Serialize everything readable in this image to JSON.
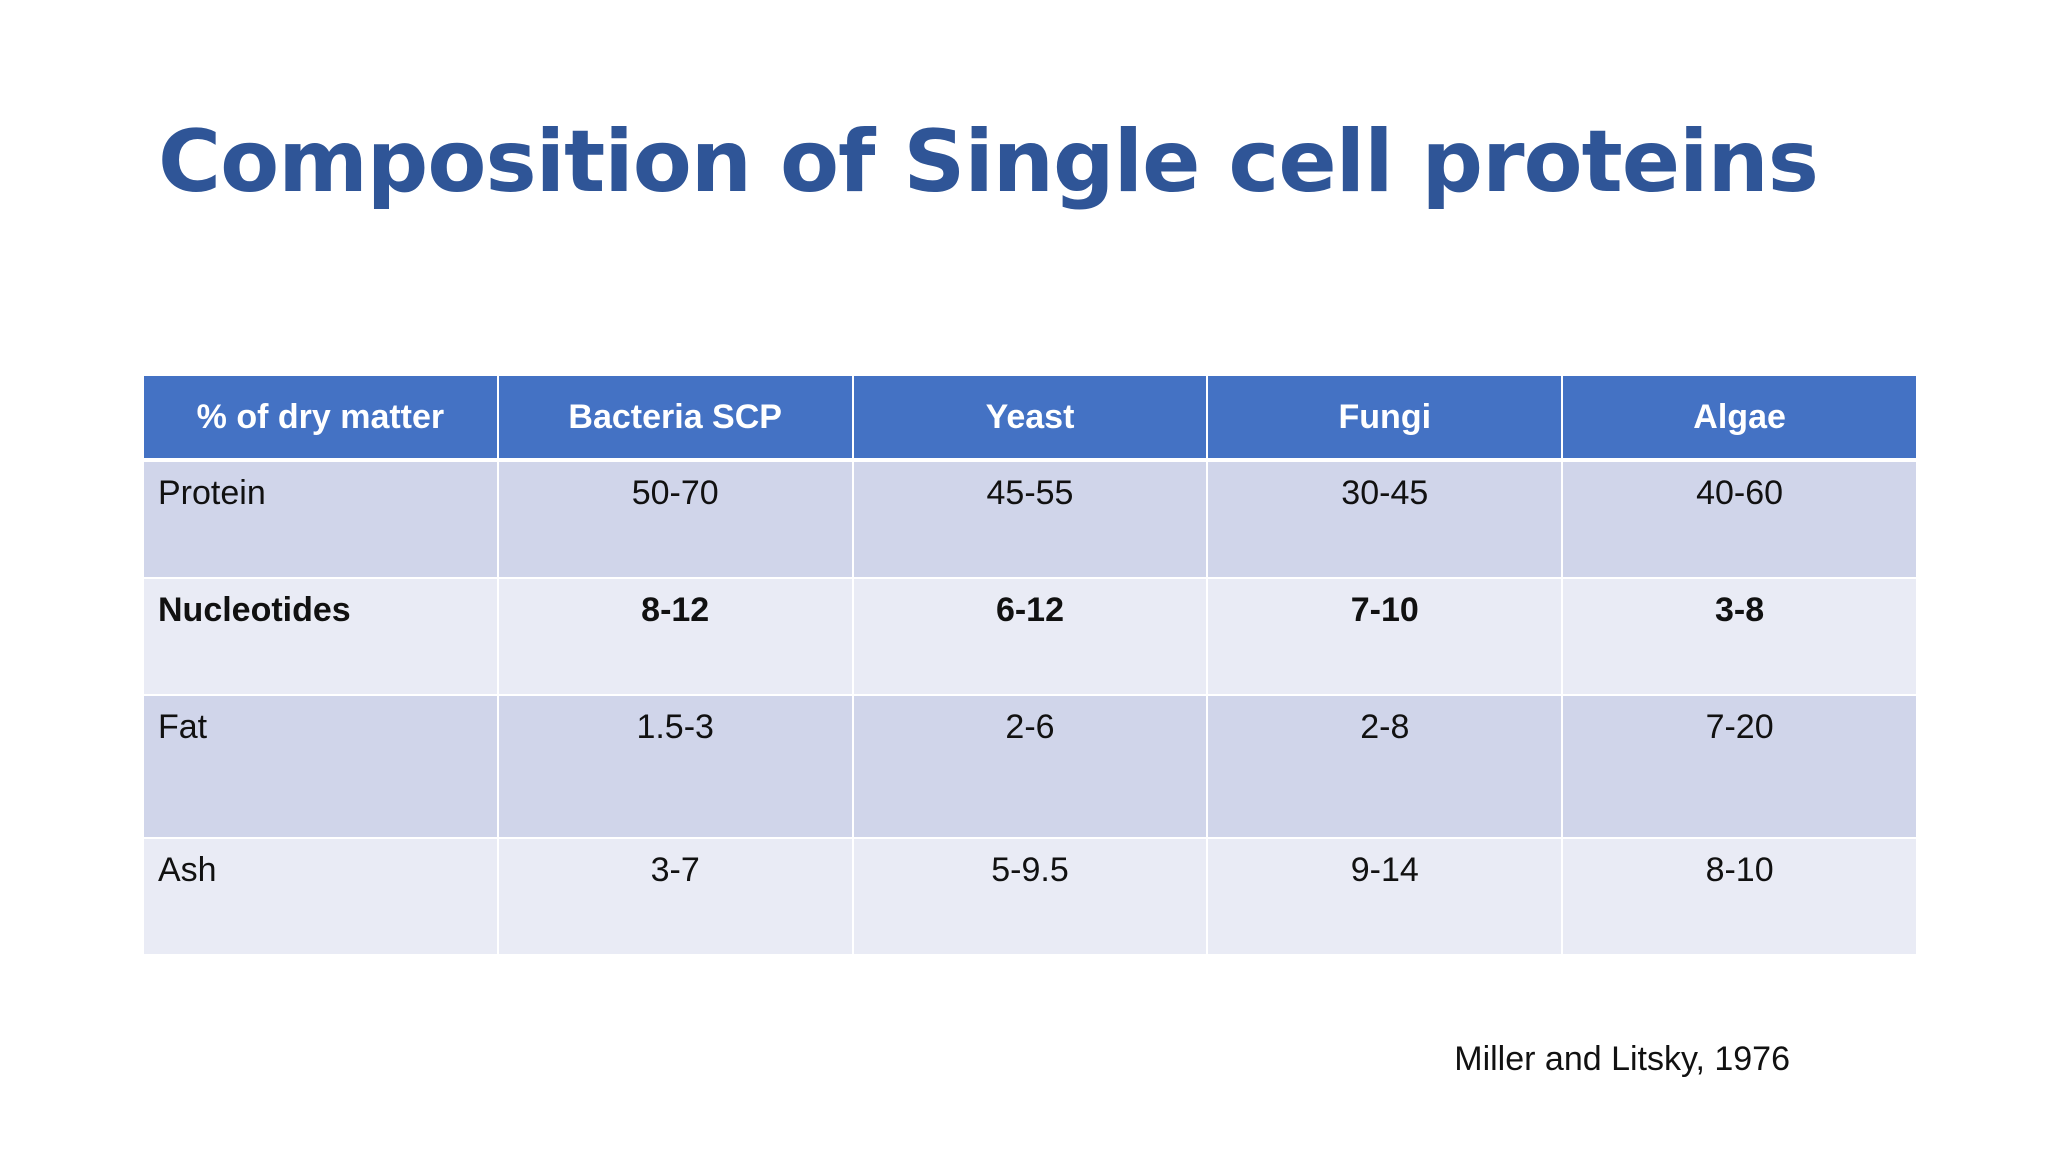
{
  "title": "Composition of Single cell proteins",
  "table": {
    "headers": [
      "% of dry matter",
      "Bacteria SCP",
      "Yeast",
      "Fungi",
      "Algae"
    ],
    "rows": [
      {
        "label": "Protein",
        "values": [
          "50-70",
          "45-55",
          "30-45",
          "40-60"
        ]
      },
      {
        "label": "Nucleotides",
        "values": [
          "8-12",
          "6-12",
          "7-10",
          "3-8"
        ]
      },
      {
        "label": "Fat",
        "values": [
          "1.5-3",
          "2-6",
          "2-8",
          "7-20"
        ]
      },
      {
        "label": "Ash",
        "values": [
          "3-7",
          "5-9.5",
          "9-14",
          "8-10"
        ]
      }
    ]
  },
  "citation": "Miller and Litsky, 1976",
  "colors": {
    "title": "#2f5597",
    "header_bg": "#4472c4",
    "band_dark": "#d0d5ea",
    "band_light": "#e9ebf5"
  }
}
